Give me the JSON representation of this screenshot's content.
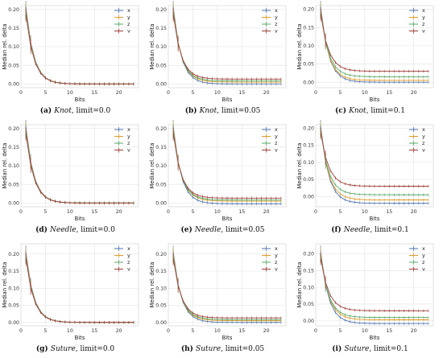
{
  "colors": {
    "x": "#4c72b0",
    "y": "#dd9b2a",
    "z": "#55a868",
    "v": "#9c3d36"
  },
  "chart_data": [
    {
      "id": "a",
      "type": "line",
      "caption_label": "(a)",
      "caption_name": "Knot",
      "caption_rest": ", limit=0.0",
      "xlabel": "Bits",
      "ylabel": "Median rel. delta",
      "xlim": [
        0,
        24
      ],
      "ylim": [
        -0.01,
        0.21
      ],
      "xticks": [
        0,
        5,
        10,
        15,
        20
      ],
      "yticks": [
        "0.00",
        "0.05",
        "0.10",
        "0.15",
        "0.20"
      ],
      "yticks_values": [
        0,
        0.05,
        0.1,
        0.15,
        0.2
      ],
      "legend": [
        "x",
        "y",
        "z",
        "v"
      ],
      "legend_position": "top-right",
      "series": [
        {
          "name": "x",
          "floor": 0.0,
          "offset": 0.0
        },
        {
          "name": "y",
          "floor": 0.0,
          "offset": 0.0
        },
        {
          "name": "z",
          "floor": 0.0,
          "offset": 0.0
        },
        {
          "name": "v",
          "floor": 0.0,
          "offset": 0.0
        }
      ]
    },
    {
      "id": "b",
      "type": "line",
      "caption_label": "(b)",
      "caption_name": "Knot",
      "caption_rest": ", limit=0.05",
      "xlabel": "Bits",
      "ylabel": "Median rel. delta",
      "xlim": [
        0,
        24
      ],
      "ylim": [
        -0.01,
        0.21
      ],
      "xticks": [
        0,
        5,
        10,
        15,
        20
      ],
      "yticks": [
        "0.00",
        "0.05",
        "0.10",
        "0.15",
        "0.20"
      ],
      "yticks_values": [
        0,
        0.05,
        0.1,
        0.15,
        0.2
      ],
      "legend": [
        "x",
        "y",
        "z",
        "v"
      ],
      "legend_position": "top-right",
      "series": [
        {
          "name": "x",
          "floor": 0.0,
          "offset": 0.0
        },
        {
          "name": "y",
          "floor": 0.005,
          "offset": 0.0
        },
        {
          "name": "z",
          "floor": 0.008,
          "offset": 0.0
        },
        {
          "name": "v",
          "floor": 0.013,
          "offset": 0.0
        }
      ]
    },
    {
      "id": "c",
      "type": "line",
      "caption_label": "(c)",
      "caption_name": "Knot",
      "caption_rest": ", limit=0.1",
      "xlabel": "Bits",
      "ylabel": "Median rel. delta",
      "xlim": [
        0,
        24
      ],
      "ylim": [
        -0.015,
        0.21
      ],
      "xticks": [
        0,
        5,
        10,
        15,
        20
      ],
      "yticks": [
        "0.00",
        "0.05",
        "0.10",
        "0.15",
        "0.20"
      ],
      "yticks_values": [
        0,
        0.05,
        0.1,
        0.15,
        0.2
      ],
      "legend": [
        "x",
        "y",
        "z",
        "v"
      ],
      "legend_position": "top-right",
      "series": [
        {
          "name": "x",
          "floor": 0.0,
          "offset": 0.0
        },
        {
          "name": "y",
          "floor": 0.005,
          "offset": 0.0
        },
        {
          "name": "z",
          "floor": 0.015,
          "offset": 0.0
        },
        {
          "name": "v",
          "floor": 0.03,
          "offset": 0.0
        }
      ]
    },
    {
      "id": "d",
      "type": "line",
      "caption_label": "(d)",
      "caption_name": "Needle",
      "caption_rest": ", limit=0.0",
      "xlabel": "Bits",
      "ylabel": "Median rel. delta",
      "xlim": [
        0,
        24
      ],
      "ylim": [
        -0.01,
        0.21
      ],
      "xticks": [
        0,
        5,
        10,
        15,
        20
      ],
      "yticks": [
        "0.00",
        "0.05",
        "0.10",
        "0.15",
        "0.20"
      ],
      "yticks_values": [
        0,
        0.05,
        0.1,
        0.15,
        0.2
      ],
      "legend": [
        "x",
        "y",
        "z",
        "v"
      ],
      "legend_position": "top-right",
      "series": [
        {
          "name": "x",
          "floor": 0.0,
          "offset": 0.0
        },
        {
          "name": "y",
          "floor": 0.0,
          "offset": 0.0
        },
        {
          "name": "z",
          "floor": 0.0,
          "offset": 0.0
        },
        {
          "name": "v",
          "floor": 0.0,
          "offset": 0.0
        }
      ]
    },
    {
      "id": "e",
      "type": "line",
      "caption_label": "(e)",
      "caption_name": "Needle",
      "caption_rest": ", limit=0.05",
      "xlabel": "Bits",
      "ylabel": "Median rel. delta",
      "xlim": [
        0,
        24
      ],
      "ylim": [
        -0.01,
        0.21
      ],
      "xticks": [
        0,
        5,
        10,
        15,
        20
      ],
      "yticks": [
        "0.00",
        "0.05",
        "0.10",
        "0.15",
        "0.20"
      ],
      "yticks_values": [
        0,
        0.05,
        0.1,
        0.15,
        0.2
      ],
      "legend": [
        "x",
        "y",
        "z",
        "v"
      ],
      "legend_position": "top-right",
      "series": [
        {
          "name": "x",
          "floor": -0.002,
          "offset": 0.0
        },
        {
          "name": "y",
          "floor": 0.005,
          "offset": 0.0
        },
        {
          "name": "z",
          "floor": 0.008,
          "offset": 0.0
        },
        {
          "name": "v",
          "floor": 0.013,
          "offset": 0.0
        }
      ]
    },
    {
      "id": "f",
      "type": "line",
      "caption_label": "(f)",
      "caption_name": "Needle",
      "caption_rest": ", limit=0.1",
      "xlabel": "Bits",
      "ylabel": "Median rel. delta",
      "xlim": [
        0,
        24
      ],
      "ylim": [
        -0.03,
        0.21
      ],
      "xticks": [
        0,
        5,
        10,
        15,
        20
      ],
      "yticks": [
        "0.00",
        "0.05",
        "0.10",
        "0.15",
        "0.20"
      ],
      "yticks_values": [
        0,
        0.05,
        0.1,
        0.15,
        0.2
      ],
      "legend": [
        "x",
        "y",
        "z",
        "v"
      ],
      "legend_position": "top-right",
      "series": [
        {
          "name": "x",
          "floor": -0.02,
          "offset": 0.0
        },
        {
          "name": "y",
          "floor": -0.01,
          "offset": 0.0
        },
        {
          "name": "z",
          "floor": 0.005,
          "offset": 0.0
        },
        {
          "name": "v",
          "floor": 0.03,
          "offset": 0.0
        }
      ]
    },
    {
      "id": "g",
      "type": "line",
      "caption_label": "(g)",
      "caption_name": "Suture",
      "caption_rest": ", limit=0.0",
      "xlabel": "Bits",
      "ylabel": "Median rel. delta",
      "xlim": [
        0,
        24
      ],
      "ylim": [
        -0.01,
        0.23
      ],
      "xticks": [
        0,
        5,
        10,
        15,
        20
      ],
      "yticks": [
        "0.00",
        "0.05",
        "0.10",
        "0.15",
        "0.20"
      ],
      "yticks_values": [
        0,
        0.05,
        0.1,
        0.15,
        0.2
      ],
      "legend": [
        "x",
        "y",
        "z",
        "v"
      ],
      "legend_position": "top-right",
      "series": [
        {
          "name": "x",
          "floor": 0.0,
          "offset": 0.0
        },
        {
          "name": "y",
          "floor": 0.0,
          "offset": 0.0
        },
        {
          "name": "z",
          "floor": 0.0,
          "offset": 0.0
        },
        {
          "name": "v",
          "floor": 0.0,
          "offset": 0.0
        }
      ]
    },
    {
      "id": "h",
      "type": "line",
      "caption_label": "(h)",
      "caption_name": "Suture",
      "caption_rest": ", limit=0.05",
      "xlabel": "Bits",
      "ylabel": "Median rel. delta",
      "xlim": [
        0,
        24
      ],
      "ylim": [
        -0.01,
        0.23
      ],
      "xticks": [
        0,
        5,
        10,
        15,
        20
      ],
      "yticks": [
        "0.00",
        "0.05",
        "0.10",
        "0.15",
        "0.20"
      ],
      "yticks_values": [
        0,
        0.05,
        0.1,
        0.15,
        0.2
      ],
      "legend": [
        "x",
        "y",
        "z",
        "v"
      ],
      "legend_position": "top-right",
      "series": [
        {
          "name": "x",
          "floor": 0.0,
          "offset": 0.0
        },
        {
          "name": "y",
          "floor": 0.005,
          "offset": 0.0
        },
        {
          "name": "z",
          "floor": 0.008,
          "offset": 0.0
        },
        {
          "name": "v",
          "floor": 0.013,
          "offset": 0.0
        }
      ]
    },
    {
      "id": "i",
      "type": "line",
      "caption_label": "(i)",
      "caption_name": "Suture",
      "caption_rest": ", limit=0.1",
      "xlabel": "Bits",
      "ylabel": "Median rel. delta",
      "xlim": [
        0,
        24
      ],
      "ylim": [
        -0.015,
        0.23
      ],
      "xticks": [
        0,
        5,
        10,
        15,
        20
      ],
      "yticks": [
        "0.00",
        "0.05",
        "0.10",
        "0.15",
        "0.20"
      ],
      "yticks_values": [
        0,
        0.05,
        0.1,
        0.15,
        0.2
      ],
      "legend": [
        "x",
        "y",
        "z",
        "v"
      ],
      "legend_position": "top-right",
      "series": [
        {
          "name": "x",
          "floor": -0.008,
          "offset": 0.0
        },
        {
          "name": "y",
          "floor": 0.003,
          "offset": 0.0
        },
        {
          "name": "z",
          "floor": 0.01,
          "offset": 0.0
        },
        {
          "name": "v",
          "floor": 0.03,
          "offset": 0.0
        }
      ]
    }
  ]
}
